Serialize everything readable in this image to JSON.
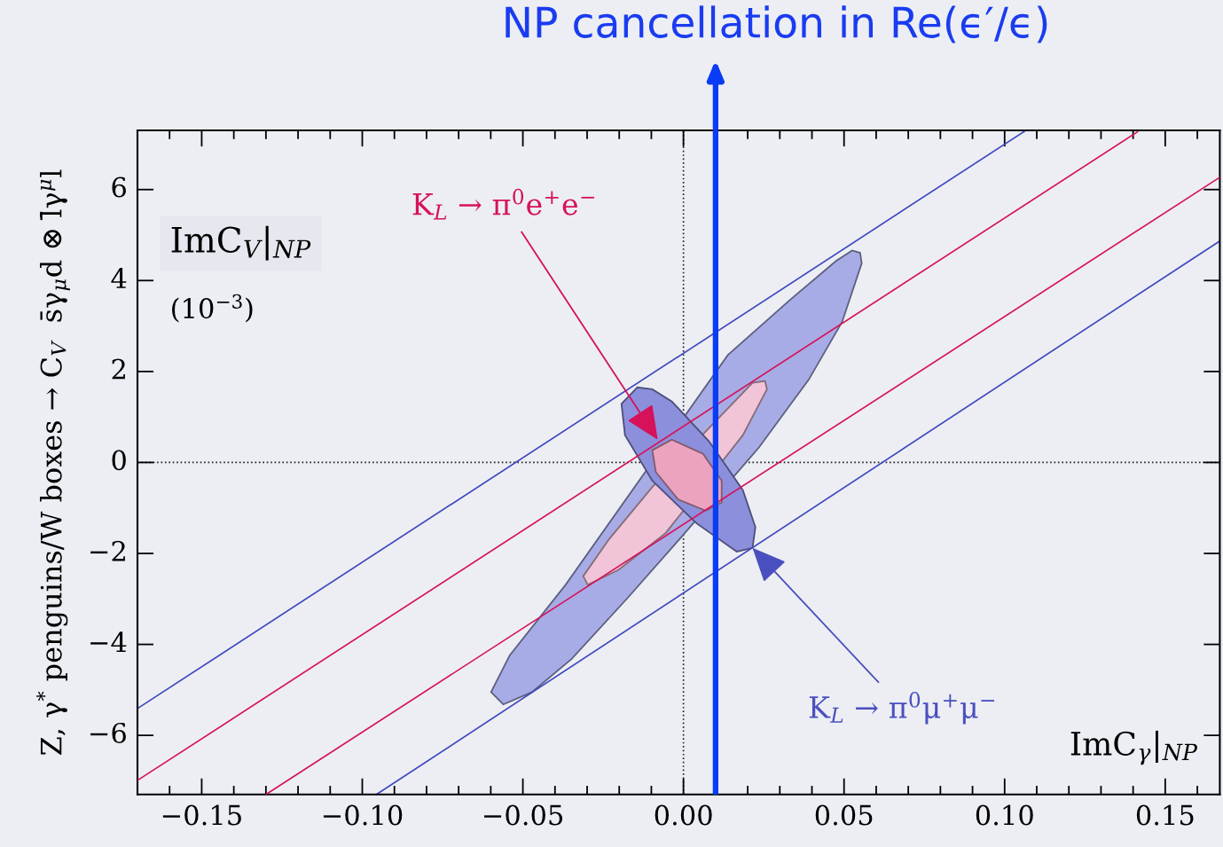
{
  "chart_data": {
    "type": "line",
    "title": "NP cancellation in Re(ϵ′/ϵ)",
    "ylabel": "Z, γ$^{*}$ penguins/W boxes → C$_{V}$  s̄γ$_{μ}$d ⊗ l̄γ$^{μ}$l",
    "xlim": [
      -0.17,
      0.167
    ],
    "ylim": [
      -7.3,
      7.3
    ],
    "xticks": [
      {
        "value": -0.15,
        "label": "−0.15"
      },
      {
        "value": -0.1,
        "label": "−0.10"
      },
      {
        "value": -0.05,
        "label": "−0.05"
      },
      {
        "value": 0,
        "label": "0.00"
      },
      {
        "value": 0.05,
        "label": "0.05"
      },
      {
        "value": 0.1,
        "label": "0.10"
      },
      {
        "value": 0.15,
        "label": "0.15"
      }
    ],
    "yticks": [
      {
        "value": -6,
        "label": "−6"
      },
      {
        "value": -4,
        "label": "−4"
      },
      {
        "value": -2,
        "label": "−2"
      },
      0,
      2,
      4,
      6
    ],
    "series": [
      {
        "type": "area",
        "color": "#a8ace6",
        "x": [
          0.055,
          0.0555,
          0.0494,
          0.039,
          0.0235,
          -0.0008,
          -0.0174,
          -0.0348,
          -0.0472,
          -0.0561,
          -0.0599,
          -0.0541,
          -0.0367,
          0.0138,
          0.0331,
          0.0475,
          0.0525
        ],
        "values": [
          4.61,
          4.38,
          3.09,
          1.82,
          0.33,
          -1.65,
          -2.98,
          -4.32,
          -5.05,
          -5.32,
          -5.05,
          -4.24,
          -2.69,
          2.36,
          3.57,
          4.43,
          4.66
        ]
      },
      {
        "type": "area",
        "color": "#f2c4d8",
        "x": [
          0.0254,
          0.026,
          0.0185,
          -0.0055,
          -0.0202,
          -0.0298,
          -0.0312,
          -0.0232,
          -0.0097,
          0.0215
        ],
        "values": [
          1.79,
          1.61,
          0.6,
          -1.55,
          -2.36,
          -2.69,
          -2.5,
          -1.69,
          -0.54,
          1.75
        ]
      },
      {
        "type": "area",
        "color": "#8c8fdc",
        "x": [
          -0.0144,
          -0.0193,
          -0.0182,
          -0.0097,
          0.0041,
          0.0166,
          0.0215,
          0.0224,
          0.0185,
          0.008,
          -0.0036,
          -0.0097
        ],
        "values": [
          1.65,
          1.29,
          0.6,
          -0.4,
          -1.34,
          -1.96,
          -1.88,
          -1.42,
          -0.61,
          0.46,
          1.34,
          1.61
        ]
      },
      {
        "type": "area",
        "color": "#eca3c0",
        "x": [
          -0.0036,
          0.0061,
          0.0119,
          0.0119,
          0.0069,
          -0.0017,
          -0.0086,
          -0.0097
        ],
        "values": [
          0.5,
          0.19,
          -0.4,
          -0.88,
          -1.06,
          -0.81,
          -0.21,
          0.27
        ]
      },
      {
        "color": "#3f48c0",
        "x": [
          -0.17,
          0.1066
        ],
        "values": [
          -5.41,
          7.3
        ]
      },
      {
        "color": "#3f48c0",
        "x": [
          -0.0956,
          0.167
        ],
        "values": [
          -7.3,
          4.87
        ]
      },
      {
        "color": "#d6125a",
        "x": [
          -0.17,
          0.1414
        ],
        "values": [
          -6.99,
          7.27
        ]
      },
      {
        "color": "#d6125a",
        "x": [
          -0.13,
          0.167
        ],
        "values": [
          -7.3,
          6.27
        ]
      }
    ],
    "ref_lines": [
      {
        "axis": "x",
        "value": 0,
        "color": "#222222",
        "line_style": "dotted"
      },
      {
        "axis": "y",
        "value": 0,
        "color": "#222222",
        "line_style": "dotted"
      },
      {
        "axis": "x",
        "value": 0.01,
        "color": "#0a3cf5",
        "line_style": "solid"
      }
    ],
    "annotations": [
      "ImC$_{V}$|$_{NP}$",
      "(10$^{−3}$)",
      {
        "text": "K$_{L}$ → π$^{0}$e$^{+}$e$^{−}$",
        "x": -0.008,
        "y": 0.5
      },
      {
        "text": "K$_{L}$ → π$^{0}$μ$^{+}$μ$^{−}$",
        "x": 0.0215,
        "y": -1.88
      },
      "ImC$_{γ}$|$_{NP}$"
    ],
    "grid": false,
    "legend": false
  }
}
